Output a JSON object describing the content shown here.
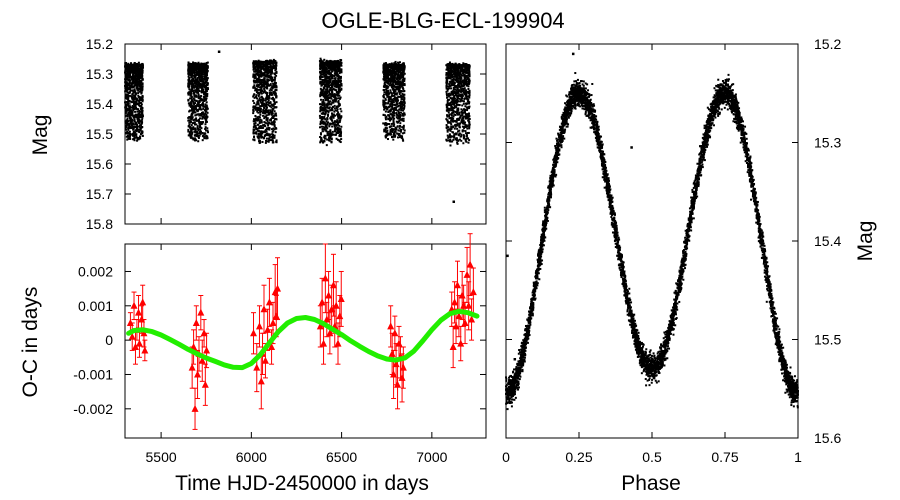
{
  "title": "OGLE-BLG-ECL-199904",
  "chart_data": [
    {
      "id": "lightcurve",
      "type": "scatter",
      "xlabel": "",
      "ylabel": "Mag",
      "xlim": [
        5300,
        7300
      ],
      "ylim": [
        15.8,
        15.2
      ],
      "yticks": [
        15.2,
        15.3,
        15.4,
        15.5,
        15.6,
        15.7,
        15.8
      ],
      "ytick_labels": [
        "15.2",
        "15.3",
        "15.4",
        "15.5",
        "15.6",
        "15.7",
        "15.8"
      ],
      "color": "#000000",
      "seasons": [
        {
          "start": 5300,
          "end": 5400,
          "mag_min": 15.27,
          "mag_max": 15.52
        },
        {
          "start": 5650,
          "end": 5760,
          "mag_min": 15.27,
          "mag_max": 15.52
        },
        {
          "start": 6010,
          "end": 6140,
          "mag_min": 15.26,
          "mag_max": 15.53
        },
        {
          "start": 6380,
          "end": 6500,
          "mag_min": 15.26,
          "mag_max": 15.53
        },
        {
          "start": 6730,
          "end": 6850,
          "mag_min": 15.27,
          "mag_max": 15.52
        },
        {
          "start": 7080,
          "end": 7210,
          "mag_min": 15.27,
          "mag_max": 15.53
        }
      ],
      "outliers": [
        {
          "x": 5820,
          "y": 15.225
        },
        {
          "x": 7120,
          "y": 15.725
        }
      ]
    },
    {
      "id": "oc",
      "type": "scatter",
      "xlabel": "Time HJD-2450000 in days",
      "ylabel": "O-C in days",
      "xlim": [
        5300,
        7300
      ],
      "ylim": [
        -0.00285,
        0.0028
      ],
      "xticks": [
        5500,
        6000,
        6500,
        7000
      ],
      "xtick_labels": [
        "5500",
        "6000",
        "6500",
        "7000"
      ],
      "yticks": [
        0.002,
        0.001,
        0,
        -0.001,
        -0.002
      ],
      "ytick_labels": [
        "0.002",
        "0.001",
        "0",
        "-0.001",
        "-0.002"
      ],
      "points_color": "#ff0000",
      "fit_color": "#22ee00",
      "points": [
        [
          5330,
          0.0005,
          0.0003
        ],
        [
          5340,
          0.0001,
          0.0004
        ],
        [
          5350,
          0.001,
          0.0004
        ],
        [
          5358,
          -0.0002,
          0.0005
        ],
        [
          5366,
          0.0003,
          0.0003
        ],
        [
          5375,
          0.0008,
          0.0005
        ],
        [
          5380,
          -0.0001,
          0.0004
        ],
        [
          5392,
          0.0006,
          0.0004
        ],
        [
          5398,
          0.0011,
          0.0005
        ],
        [
          5405,
          0.0002,
          0.0004
        ],
        [
          5410,
          -0.0003,
          0.0003
        ],
        [
          5672,
          -0.0008,
          0.0006
        ],
        [
          5680,
          -0.0002,
          0.0005
        ],
        [
          5688,
          -0.002,
          0.0006
        ],
        [
          5695,
          0.0005,
          0.0005
        ],
        [
          5702,
          -0.001,
          0.0007
        ],
        [
          5710,
          -0.0004,
          0.0005
        ],
        [
          5720,
          0.0008,
          0.0005
        ],
        [
          5728,
          -0.0006,
          0.0006
        ],
        [
          5738,
          0.0002,
          0.0004
        ],
        [
          5745,
          -0.0013,
          0.0006
        ],
        [
          5752,
          -0.0003,
          0.0005
        ],
        [
          6012,
          0.0002,
          0.0006
        ],
        [
          6030,
          -0.0008,
          0.0007
        ],
        [
          6045,
          0.0004,
          0.0006
        ],
        [
          6055,
          -0.0012,
          0.0008
        ],
        [
          6062,
          -0.0004,
          0.0006
        ],
        [
          6070,
          0.0009,
          0.0007
        ],
        [
          6078,
          -0.0006,
          0.0005
        ],
        [
          6090,
          0.0003,
          0.0006
        ],
        [
          6100,
          0.0011,
          0.0007
        ],
        [
          6112,
          -0.0002,
          0.0005
        ],
        [
          6120,
          0.0005,
          0.0006
        ],
        [
          6132,
          0.0014,
          0.0008
        ],
        [
          6138,
          0.0007,
          0.0006
        ],
        [
          6145,
          0.0015,
          0.0009
        ],
        [
          6382,
          0.0004,
          0.0006
        ],
        [
          6392,
          0.0011,
          0.0007
        ],
        [
          6400,
          -0.0001,
          0.0006
        ],
        [
          6410,
          0.0018,
          0.001
        ],
        [
          6418,
          0.0006,
          0.0005
        ],
        [
          6428,
          0.0013,
          0.0007
        ],
        [
          6435,
          0.0002,
          0.0006
        ],
        [
          6445,
          0.0009,
          0.0007
        ],
        [
          6455,
          0.0016,
          0.0009
        ],
        [
          6462,
          0.0004,
          0.0006
        ],
        [
          6470,
          0.001,
          0.0007
        ],
        [
          6480,
          -0.0001,
          0.0006
        ],
        [
          6490,
          0.0007,
          0.0006
        ],
        [
          6498,
          0.0012,
          0.0008
        ],
        [
          6772,
          0.0004,
          0.0006
        ],
        [
          6780,
          -0.0004,
          0.0006
        ],
        [
          6788,
          -0.001,
          0.0007
        ],
        [
          6795,
          0.0002,
          0.0005
        ],
        [
          6802,
          -0.0007,
          0.0006
        ],
        [
          6810,
          -0.0013,
          0.0007
        ],
        [
          6818,
          -0.0001,
          0.0005
        ],
        [
          6826,
          -0.0005,
          0.0006
        ],
        [
          6835,
          -0.0011,
          0.0007
        ],
        [
          6842,
          -0.0008,
          0.0006
        ],
        [
          7110,
          0.0009,
          0.0005
        ],
        [
          7118,
          -0.0002,
          0.0006
        ],
        [
          7126,
          0.0011,
          0.0006
        ],
        [
          7134,
          0.0004,
          0.0005
        ],
        [
          7142,
          0.0016,
          0.0007
        ],
        [
          7150,
          0.0007,
          0.0006
        ],
        [
          7160,
          -0.0001,
          0.0005
        ],
        [
          7168,
          0.0013,
          0.0007
        ],
        [
          7176,
          0.001,
          0.0006
        ],
        [
          7184,
          0.0005,
          0.0006
        ],
        [
          7195,
          0.0019,
          0.0008
        ],
        [
          7204,
          0.001,
          0.0007
        ],
        [
          7212,
          0.0022,
          0.0009
        ],
        [
          7220,
          0.0006,
          0.0006
        ],
        [
          7230,
          0.0014,
          0.0007
        ]
      ],
      "fit": [
        [
          5320,
          0.0002
        ],
        [
          5350,
          0.00028
        ],
        [
          5400,
          0.0003
        ],
        [
          5450,
          0.00025
        ],
        [
          5500,
          0.00015
        ],
        [
          5550,
          2e-05
        ],
        [
          5600,
          -0.00012
        ],
        [
          5650,
          -0.00027
        ],
        [
          5700,
          -0.0004
        ],
        [
          5750,
          -0.00052
        ],
        [
          5800,
          -0.00062
        ],
        [
          5850,
          -0.00072
        ],
        [
          5900,
          -0.00079
        ],
        [
          5950,
          -0.0008
        ],
        [
          6000,
          -0.00068
        ],
        [
          6050,
          -0.00042
        ],
        [
          6100,
          -8e-05
        ],
        [
          6150,
          0.00025
        ],
        [
          6200,
          0.0005
        ],
        [
          6250,
          0.00063
        ],
        [
          6300,
          0.00066
        ],
        [
          6350,
          0.0006
        ],
        [
          6400,
          0.00048
        ],
        [
          6450,
          0.00032
        ],
        [
          6500,
          0.00016
        ],
        [
          6550,
          -2e-05
        ],
        [
          6600,
          -0.00018
        ],
        [
          6650,
          -0.00033
        ],
        [
          6700,
          -0.00046
        ],
        [
          6750,
          -0.00055
        ],
        [
          6800,
          -0.00058
        ],
        [
          6850,
          -0.00052
        ],
        [
          6900,
          -0.00032
        ],
        [
          6950,
          -2e-05
        ],
        [
          7000,
          0.0003
        ],
        [
          7050,
          0.00058
        ],
        [
          7100,
          0.00077
        ],
        [
          7150,
          0.00084
        ],
        [
          7200,
          0.0008
        ],
        [
          7250,
          0.0007
        ]
      ]
    },
    {
      "id": "phased",
      "type": "scatter",
      "xlabel": "Phase",
      "ylabel": "Mag",
      "xlim": [
        0,
        1
      ],
      "ylim": [
        15.6,
        15.2
      ],
      "xticks": [
        0,
        0.25,
        0.5,
        0.75,
        1
      ],
      "xtick_labels": [
        "0",
        "0.25",
        "0.5",
        "0.75",
        "1"
      ],
      "yticks": [
        15.2,
        15.3,
        15.4,
        15.5,
        15.6
      ],
      "ytick_labels": [
        "15.2",
        "15.3",
        "15.4",
        "15.5",
        "15.6"
      ],
      "color": "#000000",
      "model": {
        "max_mag": 15.25,
        "primary_min_mag": 15.555,
        "secondary_min_mag": 15.505,
        "primary_phase": 0.0,
        "secondary_phase": 0.5,
        "scatter": 0.012
      },
      "outliers": [
        {
          "x": 0.23,
          "y": 15.21
        },
        {
          "x": 0.005,
          "y": 15.415
        },
        {
          "x": 0.43,
          "y": 15.305
        },
        {
          "x": 0.03,
          "y": 15.52
        }
      ]
    }
  ]
}
